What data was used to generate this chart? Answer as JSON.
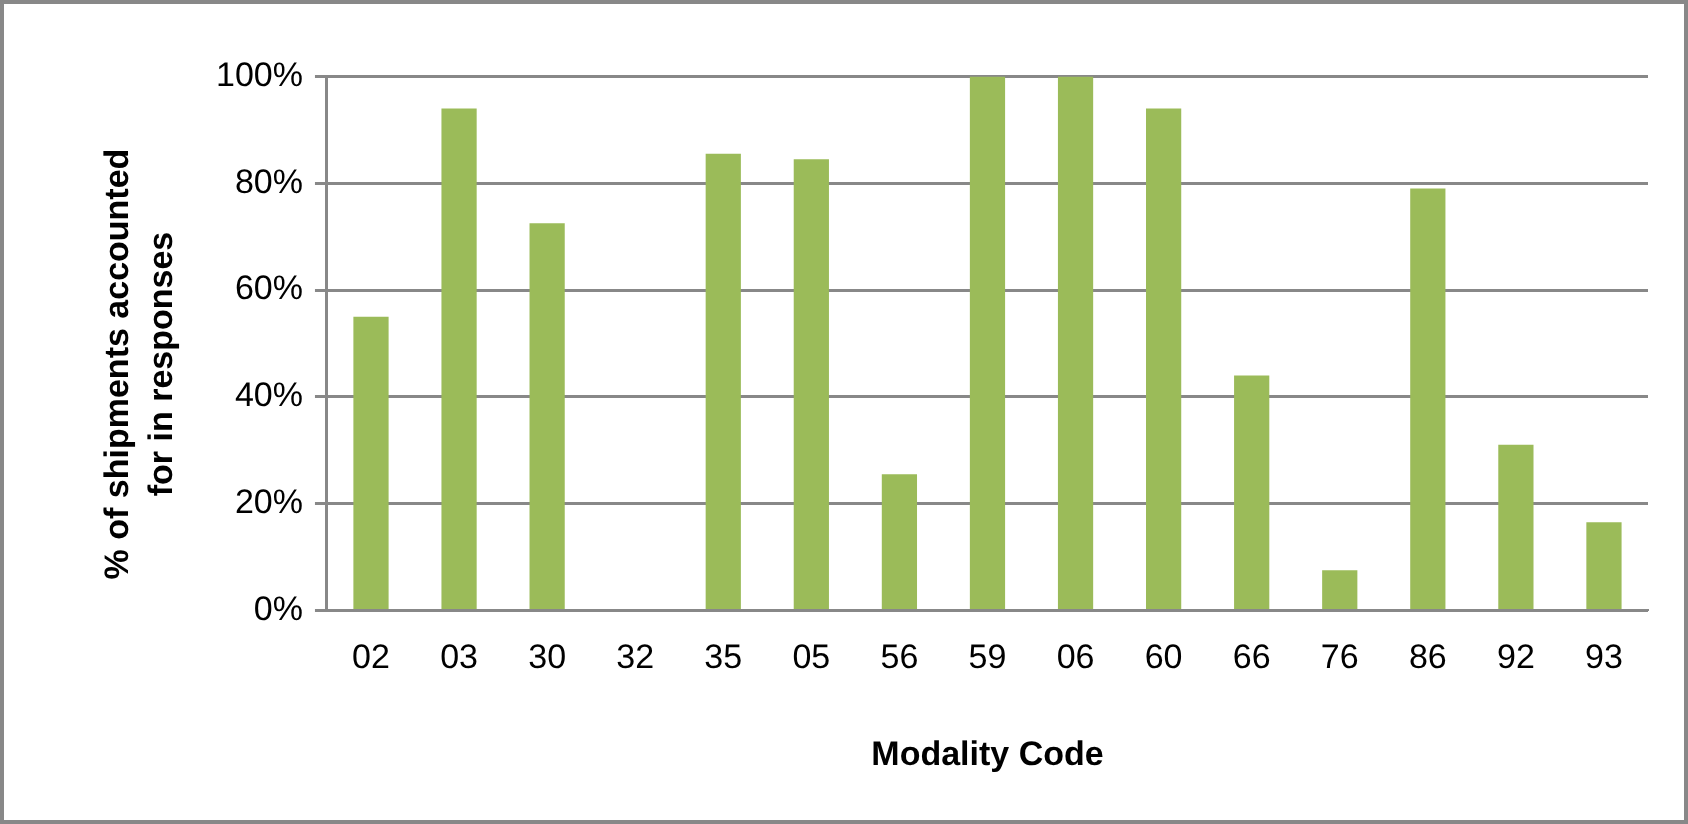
{
  "chart_data": {
    "type": "bar",
    "xlabel": "Modality Code",
    "ylabel": "% of shipments accounted for in responses",
    "categories": [
      "02",
      "03",
      "30",
      "32",
      "35",
      "05",
      "56",
      "59",
      "06",
      "60",
      "66",
      "76",
      "86",
      "92",
      "93"
    ],
    "values": [
      55,
      94,
      72.5,
      0,
      85.5,
      84.5,
      25.5,
      100,
      100,
      94,
      44,
      7.5,
      79,
      31,
      16.5
    ],
    "color": "#9bbb59",
    "ylim": [
      0,
      100
    ],
    "yticks": [
      {
        "value": 0,
        "label": "0%"
      },
      {
        "value": 20,
        "label": "20%"
      },
      {
        "value": 40,
        "label": "40%"
      },
      {
        "value": 60,
        "label": "60%"
      },
      {
        "value": 80,
        "label": "80%"
      },
      {
        "value": 100,
        "label": "100%"
      }
    ],
    "grid": "y",
    "legend": false
  }
}
